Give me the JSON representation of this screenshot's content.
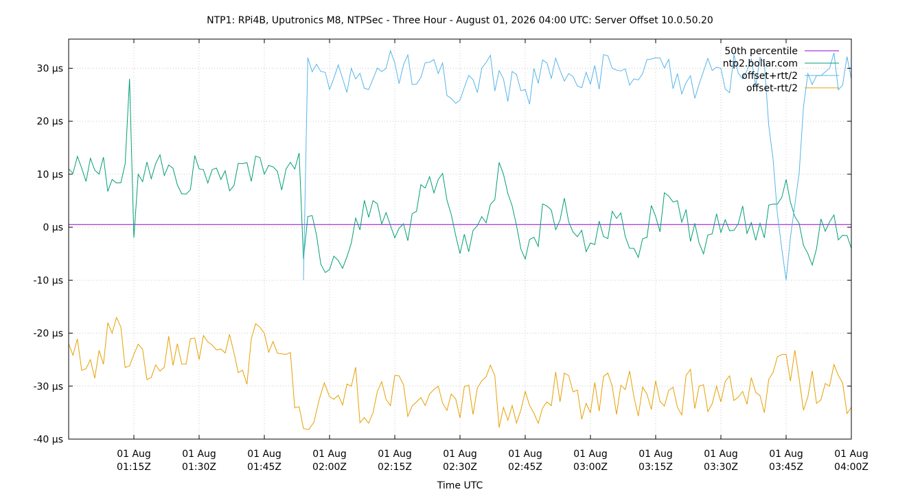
{
  "chart_data": {
    "type": "line",
    "title": "NTP1: RPi4B, Uputronics M8, NTPSec - Three Hour - August 01, 2026 04:00 UTC: Server Offset 10.0.50.20",
    "xlabel": "Time UTC",
    "ylabel": "",
    "x_range": [
      "2026-08-01T01:00Z",
      "2026-08-01T04:00Z"
    ],
    "ylim": [
      -40,
      35.5
    ],
    "y_unit": "µs",
    "grid": true,
    "legend_position": "top-right",
    "y_ticks": [
      {
        "value": 30,
        "label": "30 µs"
      },
      {
        "value": 20,
        "label": "20 µs"
      },
      {
        "value": 10,
        "label": "10 µs"
      },
      {
        "value": 0,
        "label": "0 µs"
      },
      {
        "value": -10,
        "label": "-10 µs"
      },
      {
        "value": -20,
        "label": "-20 µs"
      },
      {
        "value": -30,
        "label": "-30 µs"
      },
      {
        "value": -40,
        "label": "-40 µs"
      }
    ],
    "x_ticks": [
      {
        "value": "2026-08-01T01:15Z",
        "line1": "01 Aug",
        "line2": "01:15Z"
      },
      {
        "value": "2026-08-01T01:30Z",
        "line1": "01 Aug",
        "line2": "01:30Z"
      },
      {
        "value": "2026-08-01T01:45Z",
        "line1": "01 Aug",
        "line2": "01:45Z"
      },
      {
        "value": "2026-08-01T02:00Z",
        "line1": "01 Aug",
        "line2": "02:00Z"
      },
      {
        "value": "2026-08-01T02:15Z",
        "line1": "01 Aug",
        "line2": "02:15Z"
      },
      {
        "value": "2026-08-01T02:30Z",
        "line1": "01 Aug",
        "line2": "02:30Z"
      },
      {
        "value": "2026-08-01T02:45Z",
        "line1": "01 Aug",
        "line2": "02:45Z"
      },
      {
        "value": "2026-08-01T03:00Z",
        "line1": "01 Aug",
        "line2": "03:00Z"
      },
      {
        "value": "2026-08-01T03:15Z",
        "line1": "01 Aug",
        "line2": "03:15Z"
      },
      {
        "value": "2026-08-01T03:30Z",
        "line1": "01 Aug",
        "line2": "03:30Z"
      },
      {
        "value": "2026-08-01T03:45Z",
        "line1": "01 Aug",
        "line2": "03:45Z"
      },
      {
        "value": "2026-08-01T04:00Z",
        "line1": "01 Aug",
        "line2": "04:00Z"
      }
    ],
    "series": [
      {
        "name": "50th percentile",
        "color": "#9400d3",
        "x": [
          "2026-08-01T01:00Z",
          "2026-08-01T04:00Z"
        ],
        "values": [
          0.5,
          0.5
        ]
      },
      {
        "name": "ntp2.bollar.com",
        "color": "#009e73",
        "x": [
          "2026-08-01T01:00Z",
          "2026-08-01T01:05Z",
          "2026-08-01T01:10Z",
          "2026-08-01T01:13Z",
          "2026-08-01T01:14Z",
          "2026-08-01T01:15Z",
          "2026-08-01T01:16Z",
          "2026-08-01T01:20Z",
          "2026-08-01T01:25Z",
          "2026-08-01T01:30Z",
          "2026-08-01T01:35Z",
          "2026-08-01T01:40Z",
          "2026-08-01T01:45Z",
          "2026-08-01T01:50Z",
          "2026-08-01T01:53Z",
          "2026-08-01T01:54Z",
          "2026-08-01T01:55Z",
          "2026-08-01T02:00Z",
          "2026-08-01T02:05Z",
          "2026-08-01T02:10Z",
          "2026-08-01T02:15Z",
          "2026-08-01T02:20Z",
          "2026-08-01T02:25Z",
          "2026-08-01T02:30Z",
          "2026-08-01T02:35Z",
          "2026-08-01T02:40Z",
          "2026-08-01T02:45Z",
          "2026-08-01T02:50Z",
          "2026-08-01T02:55Z",
          "2026-08-01T03:00Z",
          "2026-08-01T03:05Z",
          "2026-08-01T03:10Z",
          "2026-08-01T03:15Z",
          "2026-08-01T03:20Z",
          "2026-08-01T03:25Z",
          "2026-08-01T03:30Z",
          "2026-08-01T03:35Z",
          "2026-08-01T03:40Z",
          "2026-08-01T03:45Z",
          "2026-08-01T03:50Z",
          "2026-08-01T03:55Z",
          "2026-08-01T04:00Z"
        ],
        "values": [
          11,
          13,
          9,
          12,
          28,
          -2,
          10,
          12,
          8,
          11,
          9,
          12,
          10,
          11,
          14,
          -6,
          2,
          -8,
          -3,
          5,
          -2,
          3,
          9,
          -5,
          2,
          10,
          -6,
          4,
          1,
          -3,
          3,
          -4,
          2,
          5,
          -3,
          -1,
          4,
          -2,
          9,
          -5,
          1,
          -4
        ]
      },
      {
        "name": "offset+rtt/2",
        "color": "#56b4e9",
        "x": [
          "2026-08-01T01:54Z",
          "2026-08-01T01:55Z",
          "2026-08-01T02:00Z",
          "2026-08-01T02:05Z",
          "2026-08-01T02:10Z",
          "2026-08-01T02:15Z",
          "2026-08-01T02:20Z",
          "2026-08-01T02:25Z",
          "2026-08-01T02:30Z",
          "2026-08-01T02:35Z",
          "2026-08-01T02:40Z",
          "2026-08-01T02:45Z",
          "2026-08-01T02:50Z",
          "2026-08-01T02:55Z",
          "2026-08-01T03:00Z",
          "2026-08-01T03:05Z",
          "2026-08-01T03:10Z",
          "2026-08-01T03:15Z",
          "2026-08-01T03:20Z",
          "2026-08-01T03:25Z",
          "2026-08-01T03:30Z",
          "2026-08-01T03:35Z",
          "2026-08-01T03:40Z",
          "2026-08-01T03:45Z",
          "2026-08-01T03:50Z",
          "2026-08-01T03:55Z",
          "2026-08-01T04:00Z"
        ],
        "values": [
          -10,
          32,
          26,
          30,
          28,
          31,
          27,
          29,
          24,
          30,
          28,
          26,
          31,
          29,
          27,
          30,
          28,
          32,
          29,
          27,
          30,
          28,
          31,
          -10,
          29,
          30,
          28
        ]
      },
      {
        "name": "offset-rtt/2",
        "color": "#e69f00",
        "x": [
          "2026-08-01T01:00Z",
          "2026-08-01T01:05Z",
          "2026-08-01T01:10Z",
          "2026-08-01T01:15Z",
          "2026-08-01T01:20Z",
          "2026-08-01T01:25Z",
          "2026-08-01T01:30Z",
          "2026-08-01T01:35Z",
          "2026-08-01T01:40Z",
          "2026-08-01T01:45Z",
          "2026-08-01T01:50Z",
          "2026-08-01T01:54Z",
          "2026-08-01T02:00Z",
          "2026-08-01T02:05Z",
          "2026-08-01T02:10Z",
          "2026-08-01T02:15Z",
          "2026-08-01T02:20Z",
          "2026-08-01T02:25Z",
          "2026-08-01T02:30Z",
          "2026-08-01T02:35Z",
          "2026-08-01T02:40Z",
          "2026-08-01T02:45Z",
          "2026-08-01T02:50Z",
          "2026-08-01T02:55Z",
          "2026-08-01T03:00Z",
          "2026-08-01T03:05Z",
          "2026-08-01T03:10Z",
          "2026-08-01T03:15Z",
          "2026-08-01T03:20Z",
          "2026-08-01T03:25Z",
          "2026-08-01T03:30Z",
          "2026-08-01T03:35Z",
          "2026-08-01T03:40Z",
          "2026-08-01T03:45Z",
          "2026-08-01T03:50Z",
          "2026-08-01T03:55Z",
          "2026-08-01T04:00Z"
        ],
        "values": [
          -22,
          -25,
          -20,
          -24,
          -26,
          -22,
          -25,
          -23,
          -27,
          -20,
          -24,
          -38,
          -32,
          -30,
          -35,
          -28,
          -33,
          -30,
          -36,
          -29,
          -34,
          -31,
          -33,
          -28,
          -35,
          -30,
          -32,
          -29,
          -34,
          -30,
          -33,
          -31,
          -35,
          -24,
          -32,
          -30,
          -34
        ]
      }
    ]
  }
}
